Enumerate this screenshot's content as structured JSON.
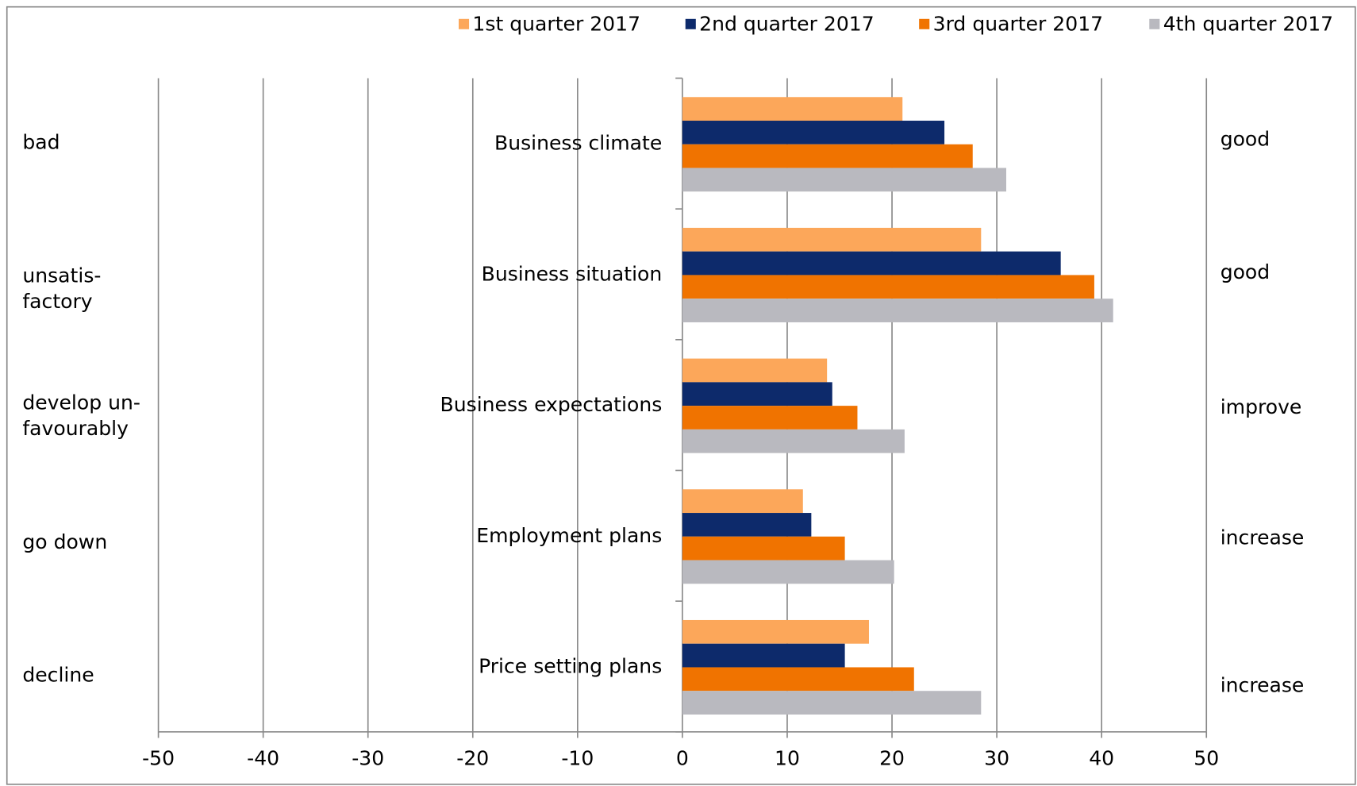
{
  "chart_data": {
    "type": "bar",
    "orientation": "horizontal",
    "categories": [
      "Business climate",
      "Business situation",
      "Business expectations",
      "Employment plans",
      "Price setting plans"
    ],
    "left_labels": [
      [
        "bad"
      ],
      [
        "unsatis-",
        "factory"
      ],
      [
        "develop un-",
        "favourably"
      ],
      [
        "go down"
      ],
      [
        "decline"
      ]
    ],
    "right_labels": [
      "good",
      "good",
      "improve",
      "increase",
      "increase"
    ],
    "series": [
      {
        "name": "1st quarter 2017",
        "color": "#fca75a",
        "values": [
          21.0,
          28.5,
          13.8,
          11.5,
          17.8
        ]
      },
      {
        "name": "2nd quarter 2017",
        "color": "#0d2a6b",
        "values": [
          25.0,
          36.1,
          14.3,
          12.3,
          15.5
        ]
      },
      {
        "name": "3rd quarter 2017",
        "color": "#f07300",
        "values": [
          27.7,
          39.3,
          16.7,
          15.5,
          22.1
        ]
      },
      {
        "name": "4th quarter 2017",
        "color": "#b9b9bf",
        "values": [
          30.9,
          41.1,
          21.2,
          20.2,
          28.5
        ]
      }
    ],
    "xlim": [
      -50,
      50
    ],
    "xticks": [
      -50,
      -40,
      -30,
      -20,
      -10,
      0,
      10,
      20,
      30,
      40,
      50
    ],
    "grid": true
  }
}
